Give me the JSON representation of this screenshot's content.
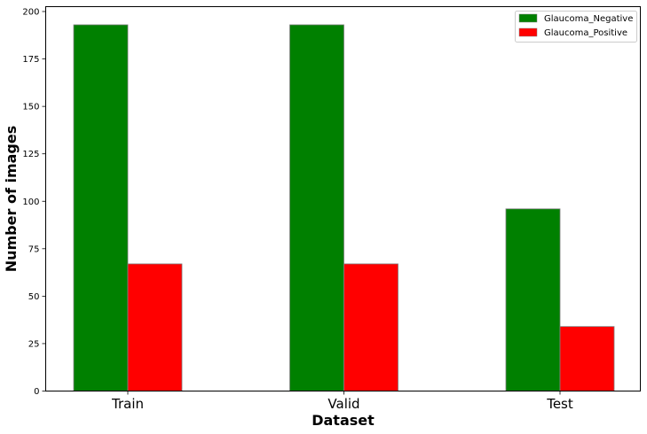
{
  "chart_data": {
    "type": "bar",
    "categories": [
      "Train",
      "Valid",
      "Test"
    ],
    "series": [
      {
        "name": "Glaucoma_Negative",
        "values": [
          193,
          193,
          96
        ],
        "color": "#008000"
      },
      {
        "name": "Glaucoma_Positive",
        "values": [
          67,
          67,
          34
        ],
        "color": "#ff0000"
      }
    ],
    "title": "",
    "xlabel": "Dataset",
    "ylabel": "Number of images",
    "ylim": [
      0,
      200
    ],
    "yticks": [
      0,
      25,
      50,
      75,
      100,
      125,
      150,
      175,
      200
    ],
    "grid": false,
    "legend_position": "top-right",
    "bar_edge_color": "#808080"
  }
}
